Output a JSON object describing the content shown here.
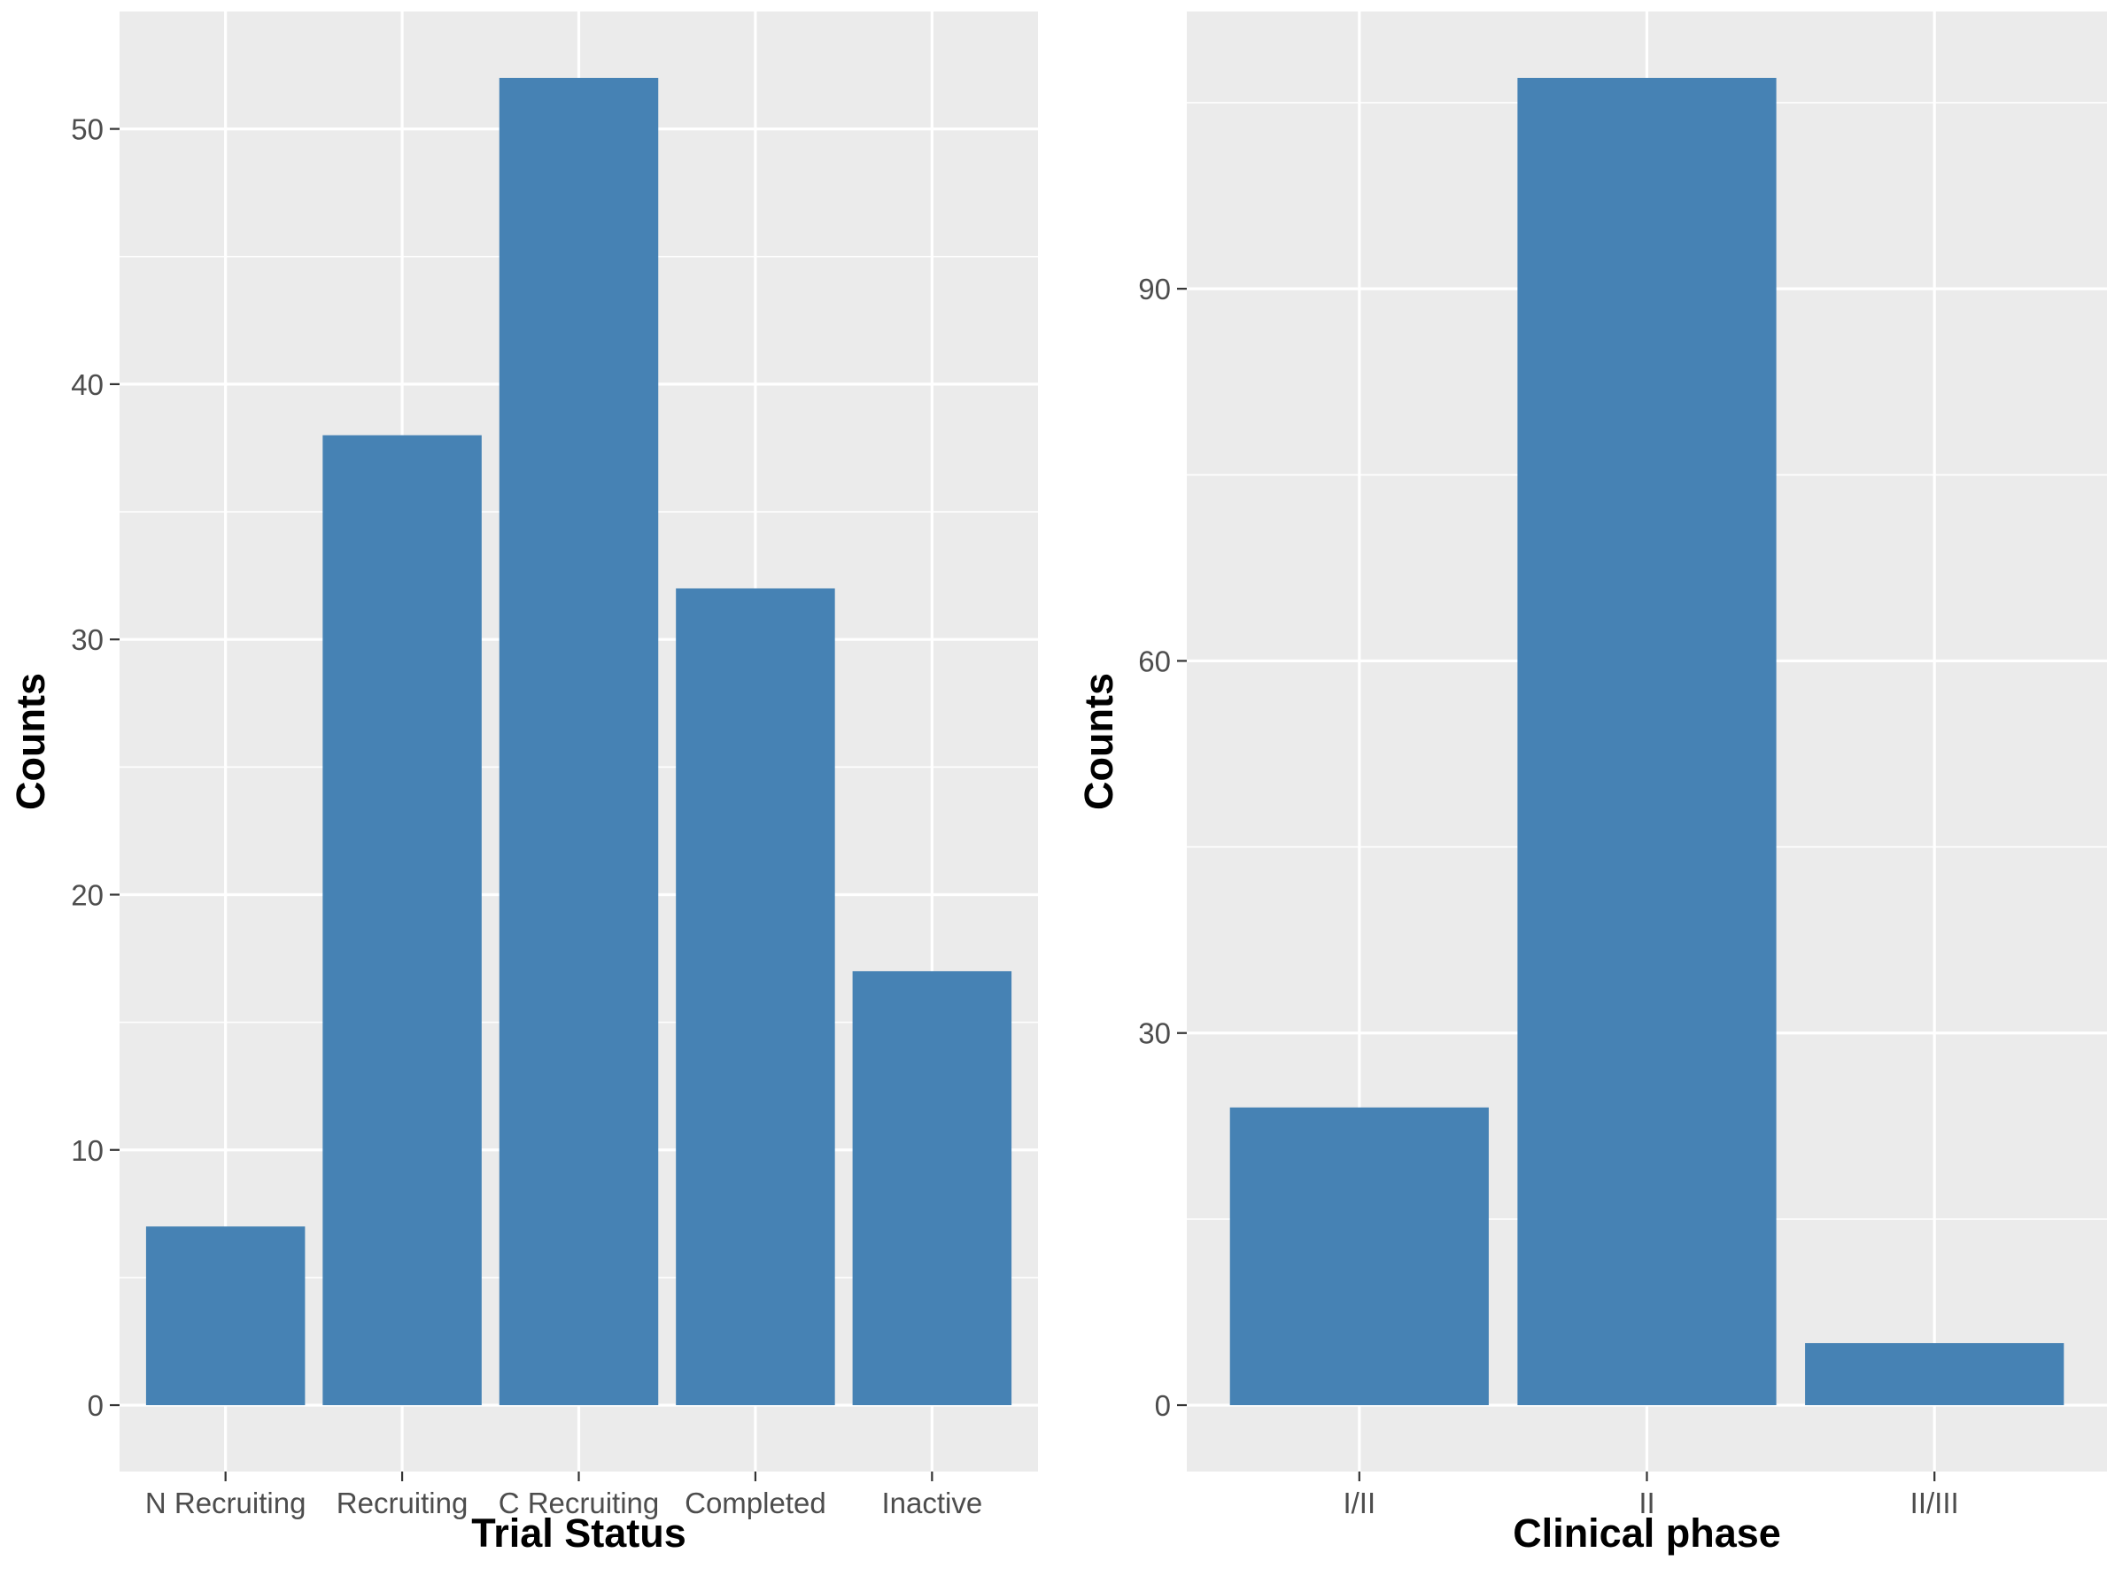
{
  "colors": {
    "panel_bg": "#ebebeb",
    "grid_major": "#ffffff",
    "bar_fill": "#4682b4",
    "tick_text": "#4d4d4d",
    "tick_mark": "#333333",
    "title_text": "#000000"
  },
  "chart_data": [
    {
      "type": "bar",
      "position": "left",
      "categories": [
        "N Recruiting",
        "Recruiting",
        "C Recruiting",
        "Completed",
        "Inactive"
      ],
      "values": [
        7,
        38,
        52,
        32,
        17
      ],
      "xlabel": "Trial Status",
      "ylabel": "Counts",
      "ylim": [
        -2.6,
        54.6
      ],
      "yticks": [
        0,
        10,
        20,
        30,
        40,
        50
      ],
      "ytick_labels": [
        "0",
        "10",
        "20",
        "30",
        "40",
        "50"
      ],
      "minor_yticks": [
        5,
        15,
        25,
        35,
        45
      ],
      "grid": true
    },
    {
      "type": "bar",
      "position": "right",
      "categories": [
        "I/II",
        "II",
        "II/III"
      ],
      "values": [
        24,
        107,
        5
      ],
      "xlabel": "Clinical phase",
      "ylabel": "Counts",
      "ylim": [
        -5.35,
        112.35
      ],
      "yticks": [
        0,
        30,
        60,
        90
      ],
      "ytick_labels": [
        "0",
        "30",
        "60",
        "90"
      ],
      "minor_yticks": [
        15,
        45,
        75,
        105
      ],
      "grid": true
    }
  ]
}
